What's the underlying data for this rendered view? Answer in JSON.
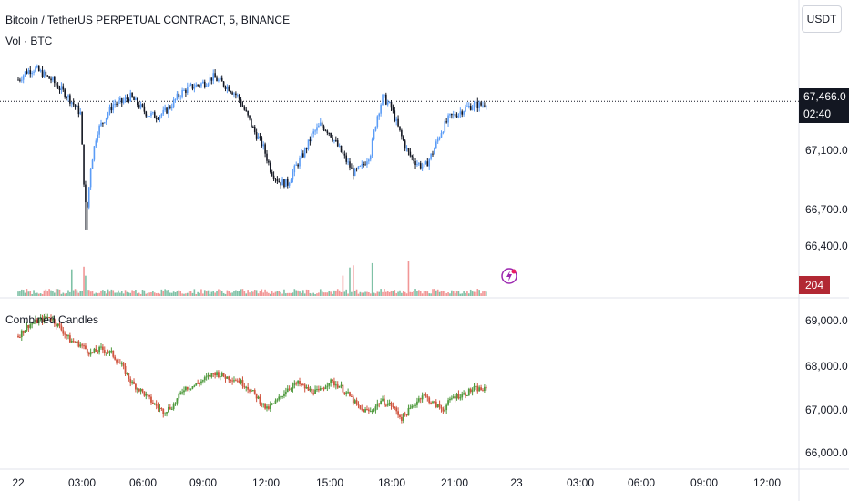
{
  "header": {
    "symbol_title": "Bitcoin / TetherUS PERPETUAL CONTRACT, 5, BINANCE",
    "volume_label": "Vol · BTC",
    "indicator_label": "Combined Candles",
    "currency_button": "USDT"
  },
  "price_scale": {
    "current_price": "67,466.0",
    "countdown": "02:40",
    "ticks": [
      "67,100.0",
      "66,700.0",
      "66,400.0"
    ]
  },
  "volume": {
    "last_value": "204"
  },
  "indicator_scale": {
    "ticks": [
      "69,000.0",
      "68,000.0",
      "67,000.0",
      "66,000.0"
    ]
  },
  "time_axis": {
    "labels": [
      "22",
      "03:00",
      "06:00",
      "09:00",
      "12:00",
      "15:00",
      "18:00",
      "21:00",
      "23",
      "03:00",
      "06:00",
      "09:00",
      "12:00"
    ]
  },
  "colors": {
    "up": "#5b9cf6",
    "down": "#131722",
    "vol_up": "#7fc1a6",
    "vol_down": "#f19696",
    "ind_up": "#4f9a3e",
    "ind_down": "#d0533e",
    "price_box": "#131722",
    "volume_badge": "#b22833",
    "alert": "#9c27b0"
  },
  "chart_data": [
    {
      "type": "candlestick",
      "title": "Bitcoin / TetherUS PERPETUAL CONTRACT, 5, BINANCE",
      "interval": "5",
      "close_series": [
        [
          0,
          67620
        ],
        [
          0.4,
          67680
        ],
        [
          0.8,
          67700
        ],
        [
          1.2,
          67660
        ],
        [
          1.6,
          67620
        ],
        [
          2.0,
          67560
        ],
        [
          2.4,
          67500
        ],
        [
          2.8,
          67420
        ],
        [
          3.0,
          67380
        ],
        [
          3.2,
          66800
        ],
        [
          3.3,
          66650
        ],
        [
          3.5,
          67000
        ],
        [
          3.8,
          67250
        ],
        [
          4.2,
          67350
        ],
        [
          4.6,
          67450
        ],
        [
          5.0,
          67460
        ],
        [
          5.4,
          67500
        ],
        [
          5.8,
          67440
        ],
        [
          6.2,
          67380
        ],
        [
          6.6,
          67360
        ],
        [
          7.0,
          67380
        ],
        [
          7.4,
          67440
        ],
        [
          7.8,
          67520
        ],
        [
          8.2,
          67560
        ],
        [
          8.6,
          67580
        ],
        [
          9.0,
          67600
        ],
        [
          9.4,
          67640
        ],
        [
          9.8,
          67600
        ],
        [
          10.2,
          67560
        ],
        [
          10.6,
          67500
        ],
        [
          11.0,
          67380
        ],
        [
          11.4,
          67250
        ],
        [
          11.8,
          67150
        ],
        [
          12.2,
          66970
        ],
        [
          12.6,
          66890
        ],
        [
          13.0,
          66880
        ],
        [
          13.4,
          67000
        ],
        [
          13.8,
          67100
        ],
        [
          14.2,
          67230
        ],
        [
          14.6,
          67300
        ],
        [
          15.0,
          67250
        ],
        [
          15.4,
          67150
        ],
        [
          15.8,
          67050
        ],
        [
          16.2,
          66950
        ],
        [
          16.6,
          67000
        ],
        [
          17.0,
          67100
        ],
        [
          17.3,
          67350
        ],
        [
          17.6,
          67500
        ],
        [
          18.0,
          67420
        ],
        [
          18.4,
          67250
        ],
        [
          18.8,
          67100
        ],
        [
          19.2,
          67030
        ],
        [
          19.6,
          66990
        ],
        [
          20.0,
          67100
        ],
        [
          20.4,
          67250
        ],
        [
          20.8,
          67350
        ],
        [
          21.2,
          67380
        ],
        [
          21.6,
          67420
        ],
        [
          22.0,
          67440
        ],
        [
          22.4,
          67440
        ],
        [
          22.6,
          67466
        ]
      ],
      "y_range": [
        66400,
        67800
      ],
      "x_range_hours": [
        0,
        37.5
      ],
      "last_price": 67466.0,
      "countdown": "02:40"
    },
    {
      "type": "bar",
      "title": "Vol · BTC",
      "last_value": 204,
      "spike_hours": [
        2.6,
        3.2,
        15.7,
        16.0,
        16.2,
        17.1,
        18.8
      ]
    },
    {
      "type": "candlestick",
      "title": "Combined Candles",
      "close_series": [
        [
          0,
          68700
        ],
        [
          0.5,
          68950
        ],
        [
          1.0,
          69050
        ],
        [
          1.5,
          69150
        ],
        [
          2.0,
          68900
        ],
        [
          2.5,
          68600
        ],
        [
          3.0,
          68500
        ],
        [
          3.5,
          68300
        ],
        [
          4.0,
          68400
        ],
        [
          4.5,
          68300
        ],
        [
          5.0,
          68000
        ],
        [
          5.5,
          67600
        ],
        [
          6.0,
          67400
        ],
        [
          6.5,
          67150
        ],
        [
          7.0,
          66950
        ],
        [
          7.5,
          67100
        ],
        [
          8.0,
          67500
        ],
        [
          8.5,
          67550
        ],
        [
          9.0,
          67700
        ],
        [
          9.5,
          67850
        ],
        [
          10.0,
          67750
        ],
        [
          10.5,
          67700
        ],
        [
          11.0,
          67550
        ],
        [
          11.5,
          67300
        ],
        [
          12.0,
          67000
        ],
        [
          12.5,
          67200
        ],
        [
          13.0,
          67500
        ],
        [
          13.5,
          67600
        ],
        [
          14.0,
          67450
        ],
        [
          14.5,
          67400
        ],
        [
          15.0,
          67650
        ],
        [
          15.5,
          67550
        ],
        [
          16.0,
          67300
        ],
        [
          16.5,
          67000
        ],
        [
          17.0,
          66950
        ],
        [
          17.5,
          67200
        ],
        [
          18.0,
          67100
        ],
        [
          18.5,
          66800
        ],
        [
          19.0,
          67050
        ],
        [
          19.5,
          67350
        ],
        [
          20.0,
          67150
        ],
        [
          20.5,
          67000
        ],
        [
          21.0,
          67300
        ],
        [
          21.5,
          67350
        ],
        [
          22.0,
          67480
        ],
        [
          22.6,
          67450
        ]
      ],
      "y_range": [
        65800,
        69500
      ],
      "y_ticks": [
        66000,
        67000,
        68000,
        69000
      ]
    }
  ]
}
